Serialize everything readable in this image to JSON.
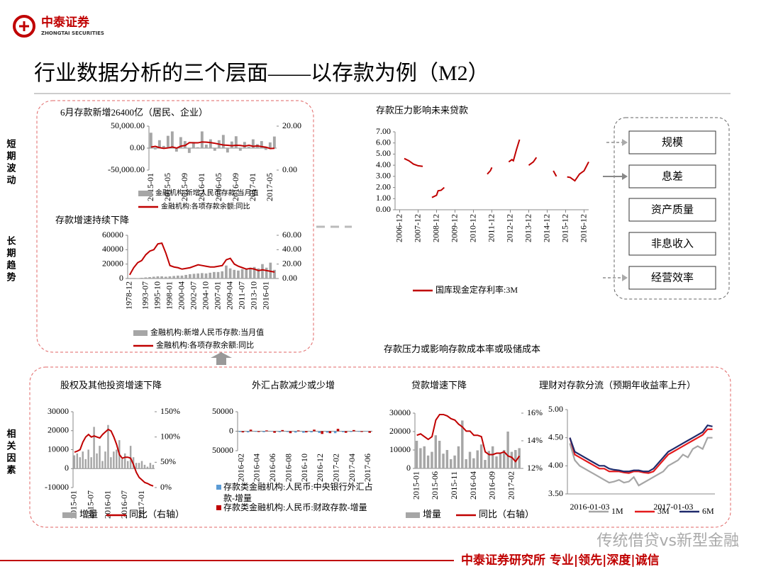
{
  "header": {
    "logo_cn": "中泰证券",
    "logo_en": "ZHONGTAI SECURITIES",
    "title": "行业数据分析的三个层面——以存款为例（M2）"
  },
  "side_labels": [
    "短期波动",
    "长期趋势",
    "相关因素"
  ],
  "boxes": [
    "规模",
    "息差",
    "资产质量",
    "非息收入",
    "经营效率"
  ],
  "caption": "存款压力或影响存款成本率或吸储成本",
  "footer": "中泰证券研究所  专业|领先|深度|诚信",
  "watermark": "传统借贷vs新型金融",
  "chart_data": [
    {
      "type": "bar",
      "title": "6月存款新增26400亿（居民、企业）",
      "categories": [
        "2015-01",
        null,
        null,
        null,
        "2015-05",
        null,
        null,
        null,
        "2015-09",
        null,
        null,
        null,
        "2016-01",
        null,
        null,
        null,
        "2016-05",
        null,
        null,
        null,
        "2016-09",
        null,
        null,
        null,
        "2017-01",
        null,
        null,
        null,
        "2017-05",
        null
      ],
      "series": [
        {
          "name": "金融机构:新增人民币存款:当月值",
          "color": "#a6a6a6",
          "values": [
            35000,
            -3000,
            18000,
            5000,
            28000,
            38000,
            -8000,
            25000,
            16000,
            -11000,
            14000,
            2000,
            38000,
            8000,
            20000,
            -6000,
            18000,
            30000,
            -10000,
            15000,
            27000,
            -6000,
            14000,
            3000,
            20000,
            9000,
            16000,
            -4000,
            13000,
            26400
          ]
        },
        {
          "name": "金融机构:各项存款余额:同比",
          "color": "#c00000",
          "type": "line",
          "axis": "y2",
          "values": [
            10.5,
            10.8,
            10.2,
            9.9,
            10.1,
            10.5,
            10.0,
            10.9,
            11.2,
            12.5,
            12.4,
            12.4,
            12.8,
            12.7,
            12.5,
            12.2,
            11.8,
            11.4,
            11.3,
            11.1,
            11.3,
            11.2,
            10.9,
            11.3,
            10.8,
            11.0,
            10.7,
            10.4,
            9.8,
            9.9
          ]
        }
      ],
      "ylim": [
        -50000,
        50000
      ],
      "yticks": [
        {
          "value": 50000,
          "label": "50,000.00"
        },
        {
          "value": 0,
          "label": "0.00"
        },
        {
          "value": -50000,
          "label": "-50,000.00"
        }
      ],
      "y2lim": [
        0,
        20
      ],
      "y2ticks": [
        {
          "value": 20,
          "label": "20.00"
        },
        {
          "value": 0,
          "label": "0.00"
        }
      ]
    },
    {
      "type": "bar",
      "title": "存款增速持续下降",
      "categories": [
        "1978-12",
        null,
        null,
        null,
        "1993-07",
        null,
        null,
        "1995-10",
        null,
        null,
        "1998-01",
        null,
        null,
        "2000-04",
        null,
        null,
        "2002-07",
        null,
        null,
        "2004-10",
        null,
        null,
        "2007-01",
        null,
        null,
        "2009-04",
        null,
        null,
        "2011-07",
        null,
        null,
        "2013-10",
        null,
        null,
        "2016-01",
        null,
        null
      ],
      "series": [
        {
          "name": "金融机构:新增人民币存款:当月值",
          "color": "#a6a6a6",
          "values": [
            0,
            0,
            500,
            1000,
            1500,
            2000,
            2500,
            3000,
            3000,
            2500,
            3000,
            3500,
            4000,
            4000,
            5000,
            6000,
            6500,
            7000,
            7500,
            7000,
            8000,
            9000,
            9000,
            10000,
            18000,
            14000,
            12000,
            11000,
            13000,
            14000,
            15000,
            16000,
            14000,
            20000,
            15000,
            22000,
            12000
          ]
        },
        {
          "name": "金融机构:各项存款余额:同比",
          "color": "#c00000",
          "type": "line",
          "axis": "y2",
          "values": [
            5,
            15,
            22,
            25,
            33,
            38,
            40,
            48,
            49,
            35,
            18,
            16,
            15,
            13,
            14,
            15,
            17,
            19,
            18,
            17,
            16,
            16,
            17,
            18,
            26,
            28,
            20,
            17,
            15,
            13,
            14,
            13,
            11,
            12,
            11,
            10,
            9
          ]
        }
      ],
      "ylim": [
        0,
        60000
      ],
      "yticks": [
        0,
        20000,
        40000,
        60000
      ],
      "y2lim": [
        0,
        60
      ],
      "y2ticks": [
        {
          "value": 0,
          "label": "0.00"
        },
        {
          "value": 20,
          "label": "20.00"
        },
        {
          "value": 40,
          "label": "40.00"
        },
        {
          "value": 60,
          "label": "60.00"
        }
      ]
    },
    {
      "type": "line",
      "title": "存款压力影响未来贷款",
      "x": [
        "2007-03",
        "2007-06",
        "2007-09",
        "2007-12",
        "2008-03",
        "2008-06",
        "2008-09",
        "2008-12",
        "2009-01",
        "2009-03",
        "2009-05",
        "2010-01",
        "2011-09",
        "2011-11",
        "2011-12",
        "2012-06",
        "2012-11",
        "2013-01",
        "2013-02",
        "2013-04",
        "2013-06",
        "2013-09",
        "2013-12",
        "2014-03",
        "2014-05",
        "2014-10",
        "2015-04",
        "2015-06",
        "2015-09",
        "2016-01",
        "2016-03",
        "2016-06",
        "2016-09",
        "2016-12",
        "2017-03"
      ],
      "series": [
        {
          "name": "国库现金定存利率:3M",
          "color": "#c00000",
          "values": [
            4.6,
            4.4,
            4.1,
            3.95,
            3.9,
            null,
            1.1,
            1.3,
            1.7,
            1.75,
            2.0,
            null,
            3.2,
            3.5,
            3.8,
            null,
            4.3,
            4.5,
            4.4,
            5.4,
            6.3,
            null,
            4.0,
            4.3,
            4.7,
            null,
            3.5,
            3.0,
            null,
            2.95,
            2.9,
            2.6,
            3.2,
            3.5,
            4.3
          ]
        }
      ],
      "xlim": [
        "2006-09",
        "2017-03"
      ],
      "xticks": [
        "2006-12",
        "2007-12",
        "2008-12",
        "2009-12",
        "2010-12",
        "2011-12",
        "2012-12",
        "2013-12",
        "2014-12",
        "2015-12",
        "2016-12"
      ],
      "ylim": [
        0,
        7
      ],
      "yticks": [
        {
          "value": 0,
          "label": "0.00"
        },
        {
          "value": 1,
          "label": "1.00"
        },
        {
          "value": 2,
          "label": "2.00"
        },
        {
          "value": 3,
          "label": "3.00"
        },
        {
          "value": 4,
          "label": "4.00"
        },
        {
          "value": 5,
          "label": "5.00"
        },
        {
          "value": 6,
          "label": "6.00"
        },
        {
          "value": 7,
          "label": "7.00"
        }
      ]
    },
    {
      "type": "bar",
      "title": "股权及其他投资增速下降",
      "categories": [
        "2015-01",
        null,
        null,
        null,
        null,
        null,
        "2015-07",
        null,
        null,
        null,
        null,
        null,
        "2016-01",
        null,
        null,
        null,
        null,
        null,
        "2016-07",
        null,
        null,
        null,
        null,
        null,
        "2017-01",
        null,
        null,
        null,
        null
      ],
      "series": [
        {
          "name": "增量",
          "color": "#a6a6a6",
          "values": [
            7000,
            8000,
            6000,
            9000,
            5000,
            10000,
            6000,
            22000,
            8000,
            12000,
            4000,
            9000,
            23000,
            6000,
            9000,
            10000,
            15000,
            5000,
            8000,
            4000,
            12000,
            6000,
            3000,
            3000,
            4000,
            2000,
            1000,
            3000,
            2000
          ]
        },
        {
          "name": "同比（右轴）",
          "color": "#c00000",
          "type": "line",
          "axis": "y2",
          "values": [
            70,
            72,
            75,
            90,
            100,
            105,
            100,
            102,
            100,
            98,
            105,
            110,
            115,
            112,
            100,
            85,
            65,
            58,
            60,
            60,
            58,
            45,
            30,
            20,
            15,
            10,
            8,
            5,
            3
          ]
        }
      ],
      "ylim": [
        -10000,
        30000
      ],
      "yticks": [
        30000,
        20000,
        10000,
        0,
        -10000
      ],
      "y2lim": [
        0,
        150
      ],
      "y2ticks": [
        {
          "value": 150,
          "label": "150%"
        },
        {
          "value": 100,
          "label": "100%"
        },
        {
          "value": 50,
          "label": "50%"
        },
        {
          "value": 0,
          "label": "0%"
        }
      ]
    },
    {
      "type": "bar",
      "title": "外汇占款减少或少增",
      "categories": [
        "2016-02",
        null,
        "2016-04",
        null,
        "2016-06",
        null,
        "2016-08",
        null,
        "2016-10",
        null,
        "2016-12",
        null,
        "2017-02",
        null,
        "2017-04",
        null,
        "2017-06"
      ],
      "series": [
        {
          "name": "存款类金融机构:人民币:中央银行外汇占款-增量",
          "color": "#5b9bd5",
          "values": [
            -2000,
            -3000,
            -1500,
            -2500,
            -1000,
            -2500,
            -2000,
            -3500,
            -4000,
            -3000,
            -4500,
            -3500,
            -5000,
            -2500,
            -2000,
            -1500,
            -1000
          ]
        },
        {
          "name": "存款类金融机构:人民币:财政存款-增量",
          "color": "#c00000",
          "values": [
            -3000,
            4000,
            -2000,
            2000,
            -4000,
            3000,
            -5000,
            2000,
            -3000,
            4000,
            -7000,
            -5000,
            6000,
            -4000,
            3000,
            -2000,
            -4000
          ]
        }
      ],
      "ylim": [
        -50000,
        50000
      ],
      "yticks": [
        50000,
        0,
        {
          "value": -50000,
          "label": "50000"
        }
      ]
    },
    {
      "type": "bar",
      "title": "贷款增速下降",
      "categories": [
        "2015-01",
        null,
        null,
        null,
        null,
        "2015-06",
        null,
        null,
        null,
        null,
        "2015-11",
        null,
        null,
        null,
        null,
        "2016-04",
        null,
        null,
        null,
        null,
        "2016-09",
        null,
        null,
        null,
        null,
        "2017-02",
        null,
        null
      ],
      "series": [
        {
          "name": "增量",
          "color": "#a6a6a6",
          "values": [
            15000,
            11000,
            12000,
            7000,
            9000,
            18000,
            15000,
            8000,
            10000,
            5000,
            7000,
            12000,
            26000,
            5000,
            9000,
            5500,
            9800,
            13000,
            4600,
            9500,
            12000,
            6500,
            8000,
            10000,
            20000,
            9000,
            10000,
            11000
          ]
        },
        {
          "name": "同比（右轴）",
          "color": "#c00000",
          "type": "line",
          "axis": "y2",
          "values": [
            14.4,
            14.5,
            14.3,
            14.1,
            14.3,
            15.5,
            15.9,
            15.9,
            15.8,
            15.6,
            15.5,
            15.2,
            15.0,
            14.7,
            14.7,
            14.4,
            14.4,
            14.3,
            13.2,
            13.0,
            13.0,
            13.1,
            13.1,
            13.2,
            12.9,
            12.8,
            12.5,
            12.9
          ]
        }
      ],
      "ylim": [
        0,
        30000
      ],
      "yticks": [
        30000,
        20000,
        10000,
        0
      ],
      "y2lim": [
        12,
        16
      ],
      "y2ticks": [
        {
          "value": 16,
          "label": "16%"
        },
        {
          "value": 14,
          "label": "14%"
        },
        {
          "value": 12,
          "label": "12%"
        }
      ]
    },
    {
      "type": "line",
      "title": "理财对存款分流（预期年收益率上升）",
      "categories": [
        "2016-01-03",
        null,
        null,
        null,
        null,
        null,
        null,
        null,
        null,
        null,
        null,
        null,
        null,
        null,
        null,
        null,
        null,
        "2017-01-03",
        null,
        null,
        null,
        null,
        null,
        null,
        null,
        null,
        null,
        null,
        null,
        null
      ],
      "series": [
        {
          "name": "1M",
          "color": "#a6a6a6",
          "values": [
            4.4,
            4.1,
            4.0,
            3.95,
            3.9,
            3.85,
            3.8,
            3.75,
            3.7,
            3.72,
            3.75,
            3.7,
            3.72,
            3.8,
            3.65,
            3.7,
            3.75,
            3.8,
            3.85,
            3.9,
            4.0,
            4.05,
            4.1,
            4.2,
            4.15,
            4.3,
            4.35,
            4.3,
            4.5,
            4.5
          ]
        },
        {
          "name": "3M",
          "color": "#e41a1c",
          "values": [
            4.5,
            4.2,
            4.15,
            4.1,
            4.05,
            4.0,
            3.95,
            3.95,
            3.9,
            3.9,
            3.9,
            3.88,
            3.87,
            3.9,
            3.9,
            3.88,
            3.87,
            3.9,
            4.0,
            4.1,
            4.2,
            4.25,
            4.3,
            4.35,
            4.4,
            4.45,
            4.5,
            4.55,
            4.65,
            4.65
          ]
        },
        {
          "name": "6M",
          "color": "#1f2a6b",
          "values": [
            4.5,
            4.25,
            4.2,
            4.15,
            4.1,
            4.05,
            4.0,
            4.0,
            3.95,
            3.93,
            3.92,
            3.9,
            3.9,
            3.92,
            3.92,
            3.9,
            3.9,
            3.95,
            4.05,
            4.15,
            4.25,
            4.3,
            4.35,
            4.4,
            4.45,
            4.5,
            4.55,
            4.6,
            4.72,
            4.7
          ]
        }
      ],
      "ylim": [
        3.5,
        5.0
      ],
      "yticks": [
        {
          "value": 3.5,
          "label": "3.50"
        },
        {
          "value": 4,
          "label": "4.00"
        },
        {
          "value": 4.5,
          "label": "4.50"
        },
        {
          "value": 5,
          "label": "5.00"
        }
      ]
    }
  ]
}
